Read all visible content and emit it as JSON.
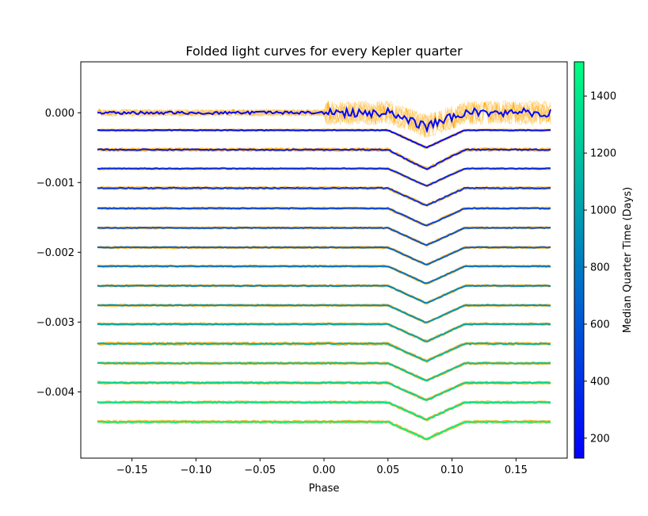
{
  "chart_data": {
    "type": "line",
    "title": "Folded light curves for every Kepler quarter",
    "xlabel": "Phase",
    "ylabel": "",
    "xlim": [
      -0.19,
      0.19
    ],
    "ylim": [
      -0.00495,
      0.00073
    ],
    "xticks": [
      -0.15,
      -0.1,
      -0.05,
      0.0,
      0.05,
      0.1,
      0.15
    ],
    "xtick_labels": [
      "−0.15",
      "−0.10",
      "−0.05",
      "0.00",
      "0.05",
      "0.10",
      "0.15"
    ],
    "yticks": [
      0.0,
      -0.001,
      -0.002,
      -0.003,
      -0.004
    ],
    "ytick_labels": [
      "0.000",
      "−0.001",
      "−0.002",
      "−0.003",
      "−0.004"
    ],
    "raw_color": "#ffa500",
    "colorbar": {
      "label": "Median Quarter Time (Days)",
      "range": [
        130,
        1520
      ],
      "ticks": [
        200,
        400,
        600,
        800,
        1000,
        1200,
        1400
      ],
      "tick_labels": [
        "200",
        "400",
        "600",
        "800",
        "1000",
        "1200",
        "1400"
      ],
      "colormap": "winter",
      "colors": [
        "#0000ff",
        "#00ff80"
      ]
    },
    "transit": {
      "center_phase": 0.08,
      "half_width": 0.03
    },
    "phase_range": [
      -0.177,
      0.177
    ],
    "series": [
      {
        "offset": 0.0,
        "depth": 0.0002,
        "median_time": 170,
        "noise": 5e-05
      },
      {
        "offset": -0.00025,
        "depth": 0.00025,
        "median_time": 200,
        "noise": 1.2e-05
      },
      {
        "offset": -0.00053,
        "depth": 0.00028,
        "median_time": 260,
        "noise": 2e-05
      },
      {
        "offset": -0.0008,
        "depth": 0.00025,
        "median_time": 350,
        "noise": 1.2e-05
      },
      {
        "offset": -0.00108,
        "depth": 0.00025,
        "median_time": 420,
        "noise": 1.8e-05
      },
      {
        "offset": -0.00137,
        "depth": 0.00025,
        "median_time": 500,
        "noise": 1.4e-05
      },
      {
        "offset": -0.00165,
        "depth": 0.00025,
        "median_time": 590,
        "noise": 1.2e-05
      },
      {
        "offset": -0.00193,
        "depth": 0.00025,
        "median_time": 680,
        "noise": 1.2e-05
      },
      {
        "offset": -0.0022,
        "depth": 0.00025,
        "median_time": 770,
        "noise": 1.2e-05
      },
      {
        "offset": -0.00248,
        "depth": 0.00025,
        "median_time": 860,
        "noise": 1.2e-05
      },
      {
        "offset": -0.00276,
        "depth": 0.00025,
        "median_time": 940,
        "noise": 1.2e-05
      },
      {
        "offset": -0.00303,
        "depth": 0.00025,
        "median_time": 1030,
        "noise": 1.4e-05
      },
      {
        "offset": -0.00331,
        "depth": 0.00025,
        "median_time": 1120,
        "noise": 1.8e-05
      },
      {
        "offset": -0.00359,
        "depth": 0.00025,
        "median_time": 1210,
        "noise": 1.4e-05
      },
      {
        "offset": -0.00387,
        "depth": 0.00025,
        "median_time": 1290,
        "noise": 1.6e-05
      },
      {
        "offset": -0.00415,
        "depth": 0.00025,
        "median_time": 1370,
        "noise": 1.6e-05
      },
      {
        "offset": -0.00443,
        "depth": 0.00025,
        "median_time": 1450,
        "noise": 1.8e-05
      }
    ]
  }
}
